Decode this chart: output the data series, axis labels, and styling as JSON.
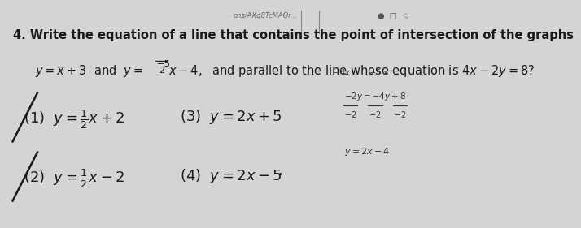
{
  "bg_color": "#d4d4d4",
  "font_color": "#1a1a1a",
  "url_text": "ons/AXg8TcMAQr...",
  "title_line1": "4. Write the equation of a line that contains the point of intersection of the graphs",
  "title_line2a": "y = x + 3 and y =",
  "title_line2b": "x – 4, and parallel to the line whose equation is 4x– 2y = 8?",
  "frac_num": "-5",
  "frac_den": "2",
  "opt1_label": "(1)",
  "opt1_eq": "$y = \\frac{1}{2}x + 2$",
  "opt2_label": "(2)",
  "opt2_eq": "$y = \\frac{1}{2}x - 2$",
  "opt3_label": "(3)",
  "opt3_eq": "$y = 2x + 5$",
  "opt4_label": "(4)",
  "opt4_eq": "$y = 2x - 5$",
  "side1": "$-2y = -4y+8$",
  "side2a": "$-2$",
  "side2b": "$-2$",
  "side2c": "$-2$",
  "side3": "$y = 2x-4$",
  "scratch1": "$-4x$",
  "scratch2": "$-5|x$"
}
